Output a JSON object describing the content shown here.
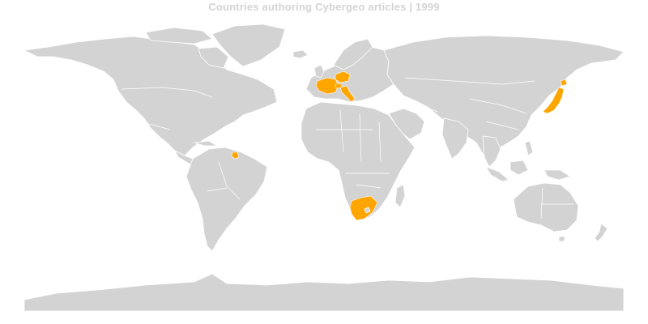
{
  "map": {
    "title": "Countries authoring Cybergeo articles | 1999",
    "background_color": "#ffffff",
    "land_color": "#d3d3d3",
    "border_color": "#ffffff",
    "highlight_color": "#ffa500"
  }
}
